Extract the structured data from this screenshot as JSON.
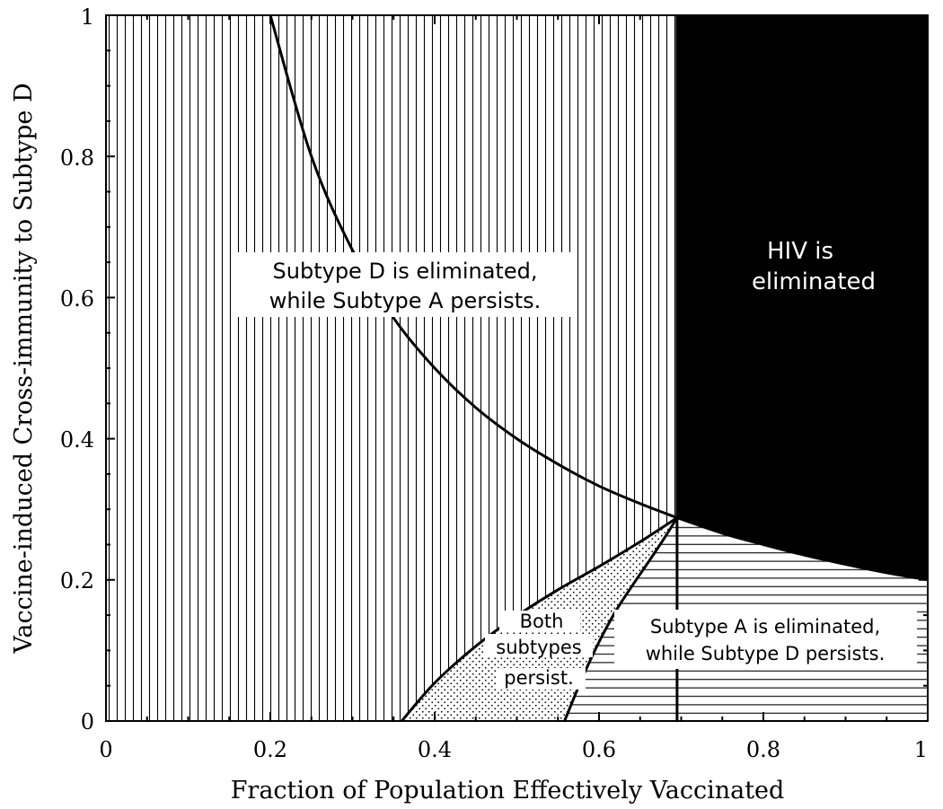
{
  "chart_data": {
    "type": "area",
    "title": "",
    "xlabel": "Fraction of Population Effectively Vaccinated",
    "ylabel": "Vaccine-induced Cross-immunity to Subtype D",
    "xlim": [
      0,
      1
    ],
    "ylim": [
      0,
      1
    ],
    "x_ticks": [
      "0",
      "0.2",
      "0.4",
      "0.6",
      "0.8",
      "1"
    ],
    "y_ticks": [
      "0",
      "0.2",
      "0.4",
      "0.6",
      "0.8",
      "1"
    ],
    "grid": false,
    "boundaries": [
      {
        "description": "Subtype D elimination threshold",
        "points": [
          [
            0.2,
            1.0
          ],
          [
            0.25,
            0.8
          ],
          [
            0.3,
            0.667
          ],
          [
            0.35,
            0.571
          ],
          [
            0.4,
            0.5
          ],
          [
            0.45,
            0.444
          ],
          [
            0.5,
            0.4
          ],
          [
            0.55,
            0.364
          ],
          [
            0.6,
            0.333
          ],
          [
            0.65,
            0.308
          ],
          [
            0.695,
            0.288
          ]
        ]
      },
      {
        "description": "HIV elimination boundary",
        "points": [
          [
            0.695,
            0.288
          ],
          [
            0.75,
            0.266
          ],
          [
            0.8,
            0.25
          ],
          [
            0.85,
            0.235
          ],
          [
            0.9,
            0.222
          ],
          [
            0.95,
            0.21
          ],
          [
            1.0,
            0.2
          ]
        ]
      },
      {
        "description": "Coexistence left boundary",
        "points": [
          [
            0.36,
            0.0
          ],
          [
            0.4,
            0.054
          ],
          [
            0.45,
            0.106
          ],
          [
            0.5,
            0.149
          ],
          [
            0.55,
            0.186
          ],
          [
            0.6,
            0.219
          ],
          [
            0.65,
            0.254
          ],
          [
            0.695,
            0.288
          ]
        ]
      },
      {
        "description": "Coexistence right boundary",
        "points": [
          [
            0.558,
            0.0
          ],
          [
            0.58,
            0.062
          ],
          [
            0.6,
            0.112
          ],
          [
            0.62,
            0.155
          ],
          [
            0.64,
            0.191
          ],
          [
            0.66,
            0.225
          ],
          [
            0.68,
            0.26
          ],
          [
            0.695,
            0.288
          ]
        ]
      },
      {
        "description": "Critical vaccination fraction",
        "points": [
          [
            0.695,
            0.0
          ],
          [
            0.695,
            1.0
          ]
        ]
      }
    ],
    "regions": [
      {
        "pattern": "vertical-lines",
        "label": [
          "Subtype D is eliminated,",
          "while Subtype A persists."
        ]
      },
      {
        "pattern": "solid-black",
        "label": [
          "HIV is",
          "eliminated"
        ]
      },
      {
        "pattern": "dots",
        "label": [
          "Both",
          "subtypes",
          "persist."
        ]
      },
      {
        "pattern": "horizontal-lines",
        "label": [
          "Subtype A is eliminated,",
          "while Subtype D persists."
        ]
      }
    ]
  }
}
